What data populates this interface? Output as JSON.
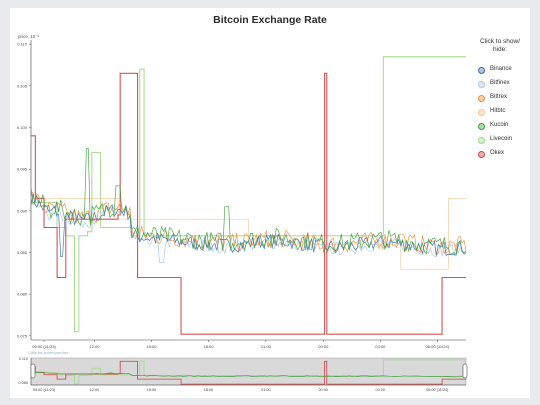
{
  "chart_data": {
    "type": "line",
    "title": "Bitcoin Exchange Rate",
    "ylabel": "price, 10⁻³",
    "ylim": [
      0.0745,
      0.1105
    ],
    "x": [
      "09:00 (11/23)",
      "12:00",
      "15:00",
      "18:00",
      "21:00",
      "00:00",
      "03:00",
      "06:00 (11/24)"
    ],
    "yticks": [
      "0.075",
      "0.080",
      "0.085",
      "0.090",
      "0.095",
      "0.100",
      "0.105",
      "0.110"
    ],
    "legend_title": "Click to show/ hide:",
    "legend_position": "right",
    "grid": false,
    "series": [
      {
        "name": "Binance",
        "color": "#3a6fa8"
      },
      {
        "name": "Bitfinex",
        "color": "#a9c6e4"
      },
      {
        "name": "Bittrex",
        "color": "#f28d38"
      },
      {
        "name": "Hitbtc",
        "color": "#f5c58f"
      },
      {
        "name": "Kucoin",
        "color": "#3e9e3e"
      },
      {
        "name": "Livecoin",
        "color": "#a4d88d"
      },
      {
        "name": "Okex",
        "color": "#d24040"
      }
    ]
  },
  "brush": {
    "hint": "Click for zoom/pan line",
    "ylim_labels": [
      "0.110",
      "0.080"
    ],
    "x": [
      "09:00 (11/23)",
      "12:00",
      "15:00",
      "18:00",
      "21:00",
      "00:00",
      "03:00",
      "06:00 (11/24)"
    ]
  }
}
